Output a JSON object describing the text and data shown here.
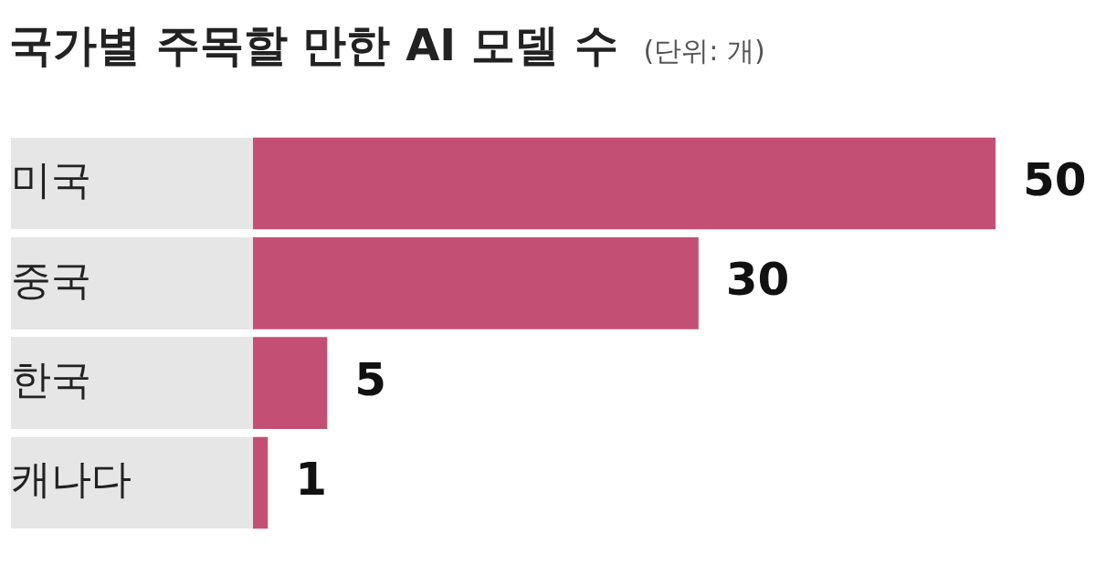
{
  "chart_data": {
    "type": "bar",
    "title": "국가별 주목할 만한 AI 모델 수",
    "subtitle": "(단위: 개)",
    "orientation": "horizontal",
    "categories": [
      "미국",
      "중국",
      "한국",
      "캐나다"
    ],
    "values": [
      50,
      30,
      5,
      1
    ],
    "color": "#c44f75",
    "data_labels": true
  }
}
